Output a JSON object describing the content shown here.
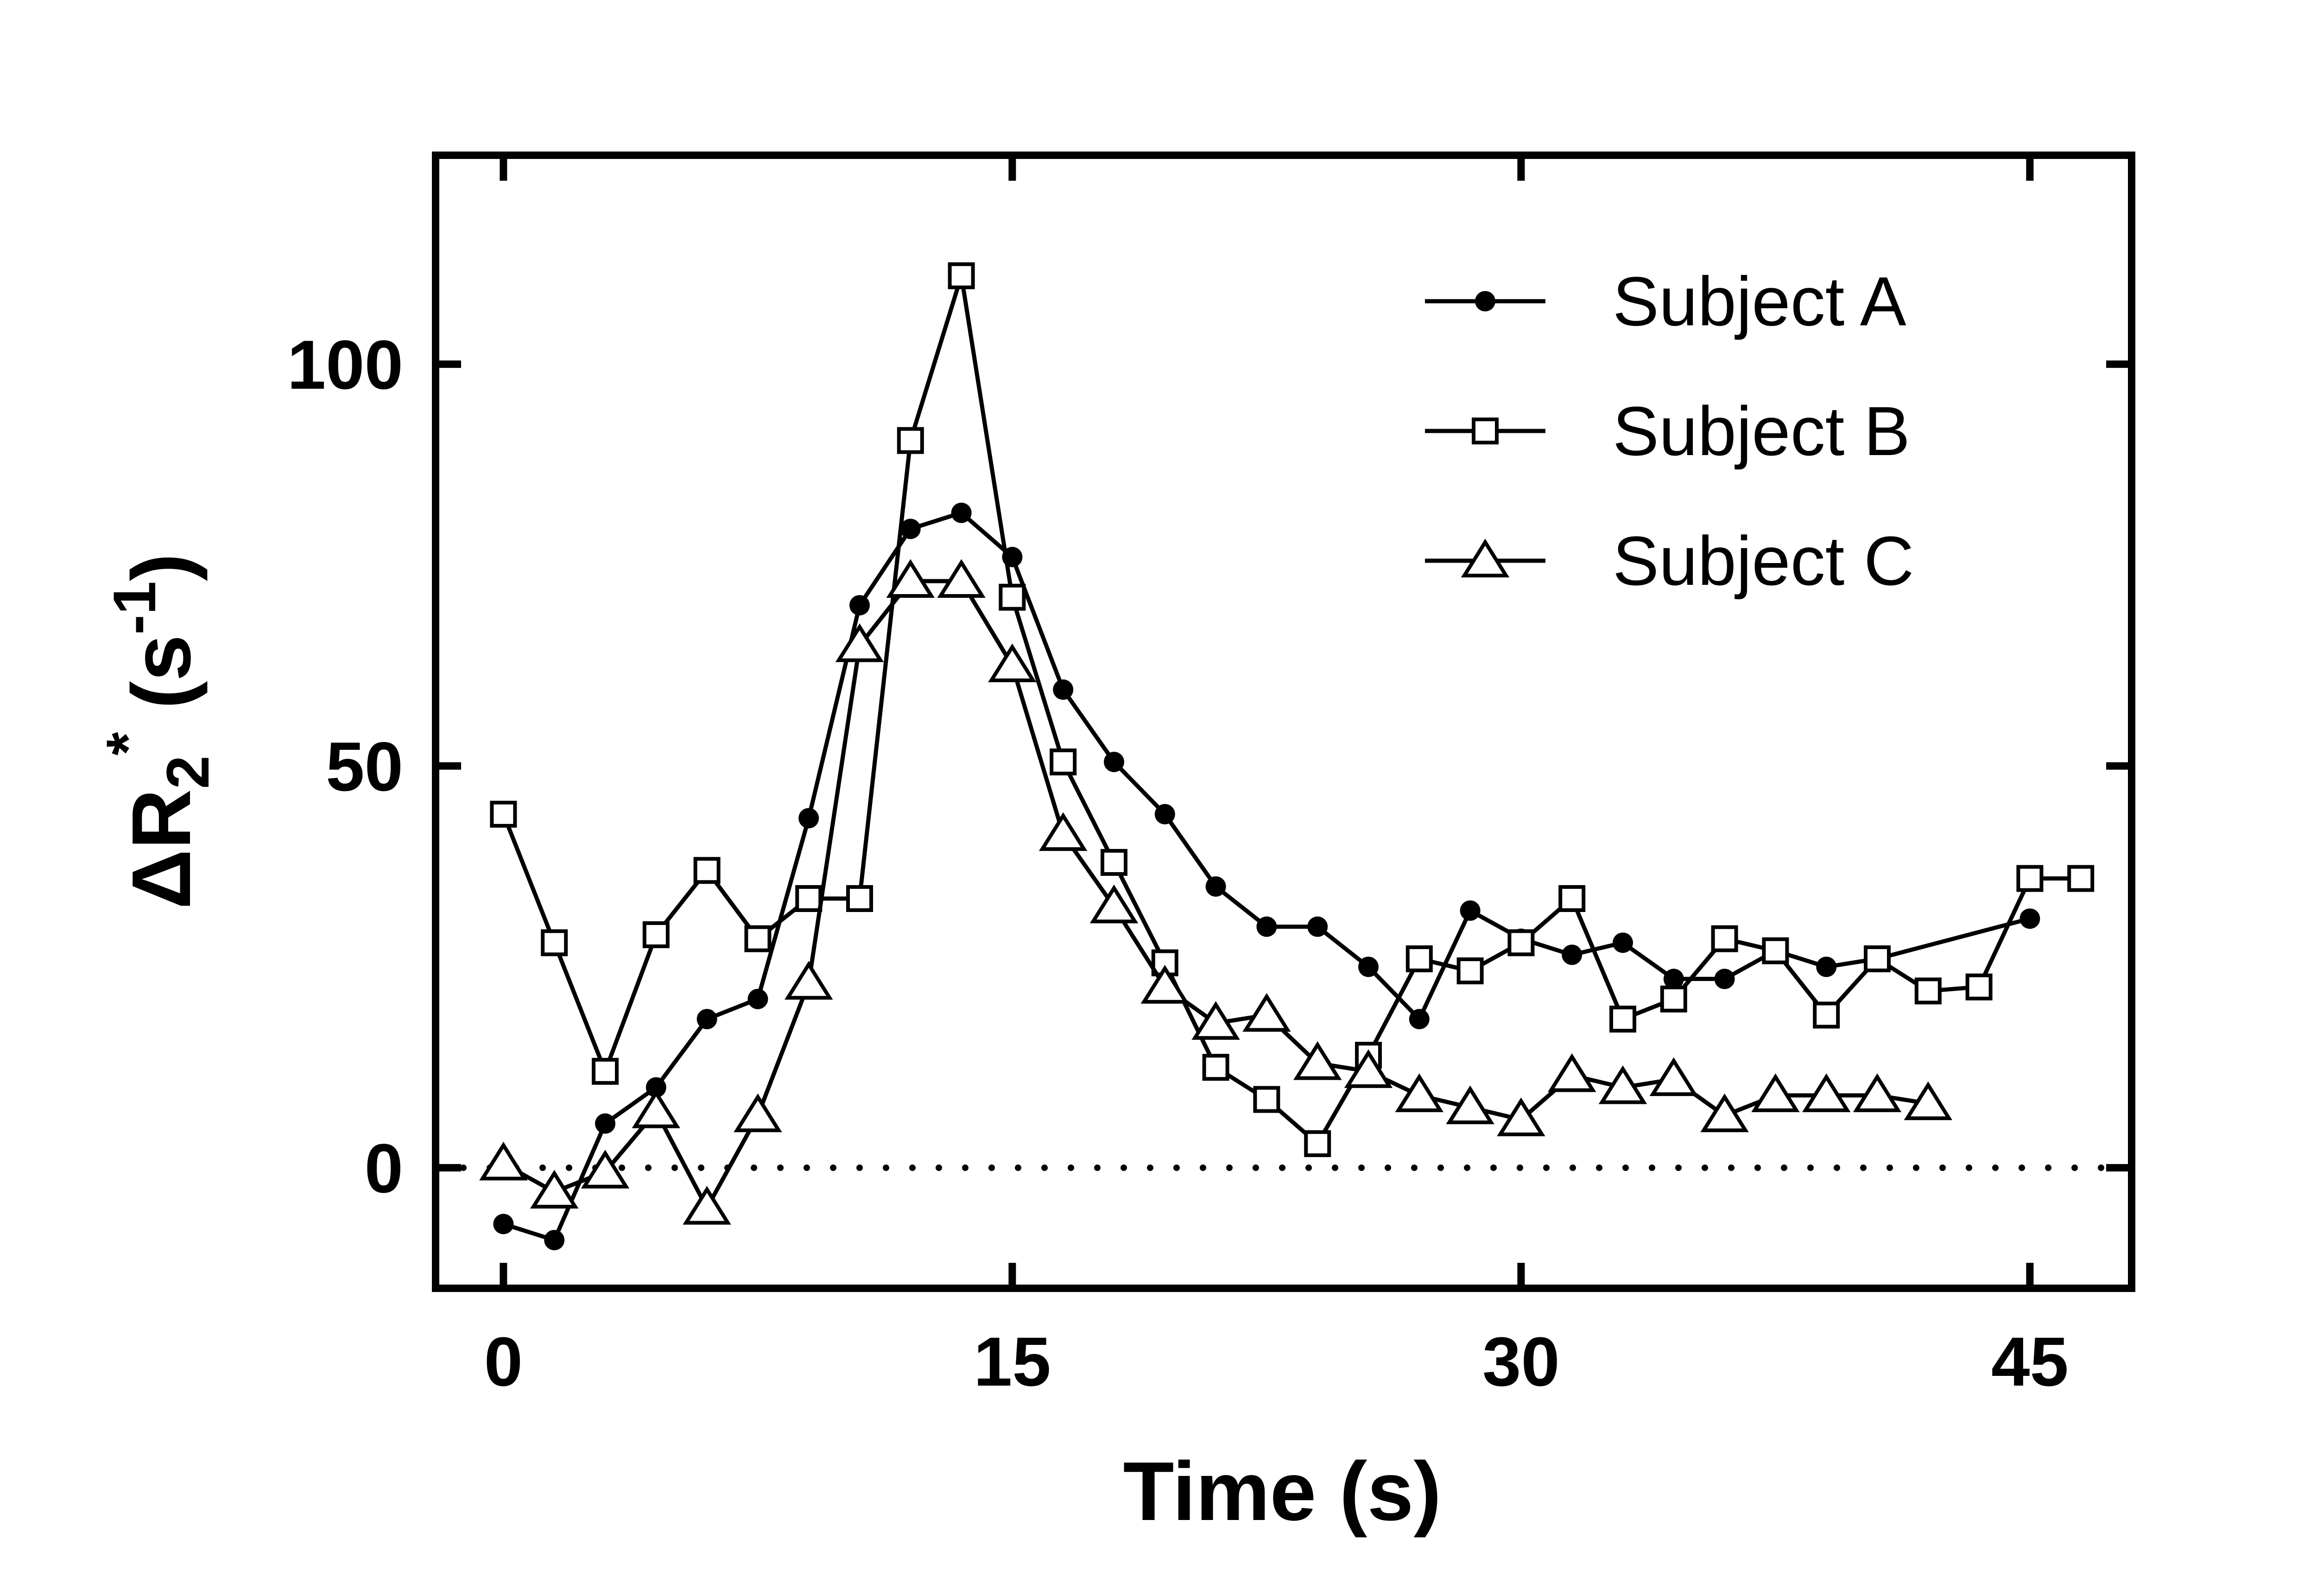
{
  "chart_data": {
    "type": "line",
    "title": "",
    "xlabel": "Time (s)",
    "ylabel": {
      "base": "ΔR",
      "subscript": "2",
      "superscript": "*",
      "units_open": " (s",
      "units_sup": "-1",
      "units_close": ")"
    },
    "xlim": [
      -2,
      48
    ],
    "ylim": [
      -15,
      126
    ],
    "x_ticks": [
      0,
      15,
      30,
      45
    ],
    "y_ticks": [
      0,
      50,
      100
    ],
    "x_tick_labels": [
      "0",
      "15",
      "30",
      "45"
    ],
    "y_tick_labels": [
      "0",
      "50",
      "100"
    ],
    "reference_line": {
      "y": 0,
      "style": "dotted"
    },
    "legend": {
      "position": "top-right",
      "entries": [
        "Subject A",
        "Subject B",
        "Subject C"
      ]
    },
    "series": [
      {
        "name": "Subject A",
        "marker": "filled-circle",
        "x": [
          0,
          1.5,
          3,
          4.5,
          6,
          7.5,
          9,
          10.5,
          12,
          13.5,
          15,
          16.5,
          18,
          19.5,
          21,
          22.5,
          24,
          25.5,
          27,
          28.5,
          30,
          31.5,
          33,
          34.5,
          36,
          37.5,
          39,
          40.5,
          45
        ],
        "y": [
          -7,
          -9,
          5.5,
          10,
          18.5,
          21,
          43.5,
          70,
          79.5,
          81.5,
          76,
          59.5,
          50.5,
          44,
          35,
          30,
          30,
          25,
          18.5,
          32,
          28.5,
          26.5,
          28,
          23.5,
          23.5,
          27,
          25,
          26,
          31
        ]
      },
      {
        "name": "Subject B",
        "marker": "open-square",
        "x": [
          0,
          1.5,
          3,
          4.5,
          6,
          7.5,
          9,
          10.5,
          12,
          13.5,
          15,
          16.5,
          18,
          19.5,
          21,
          22.5,
          24,
          25.5,
          27,
          28.5,
          30,
          31.5,
          33,
          34.5,
          36,
          37.5,
          39,
          40.5,
          42,
          43.5,
          45,
          46.5
        ],
        "y": [
          44,
          28,
          12,
          29,
          37,
          28.5,
          33.5,
          33.5,
          90.5,
          111,
          71,
          50.5,
          38,
          25.5,
          12.5,
          8.5,
          3,
          14,
          26,
          24.5,
          28,
          33.5,
          18.5,
          21,
          28.5,
          27,
          19,
          26,
          22,
          22.5,
          36,
          36
        ]
      },
      {
        "name": "Subject C",
        "marker": "open-triangle",
        "x": [
          0,
          1.5,
          3,
          4.5,
          6,
          7.5,
          9,
          10.5,
          12,
          13.5,
          15,
          16.5,
          18,
          19.5,
          21,
          22.5,
          24,
          25.5,
          27,
          28.5,
          30,
          31.5,
          33,
          34.5,
          36,
          37.5,
          39,
          40.5,
          42
        ],
        "y": [
          0.5,
          -3,
          -0.5,
          7,
          -5,
          6.5,
          23,
          65,
          73,
          73,
          62.5,
          41.5,
          32.5,
          22.5,
          18,
          19,
          13,
          12,
          9,
          7.5,
          6,
          11.5,
          10,
          11,
          6.5,
          9,
          9,
          9,
          8
        ]
      }
    ]
  }
}
